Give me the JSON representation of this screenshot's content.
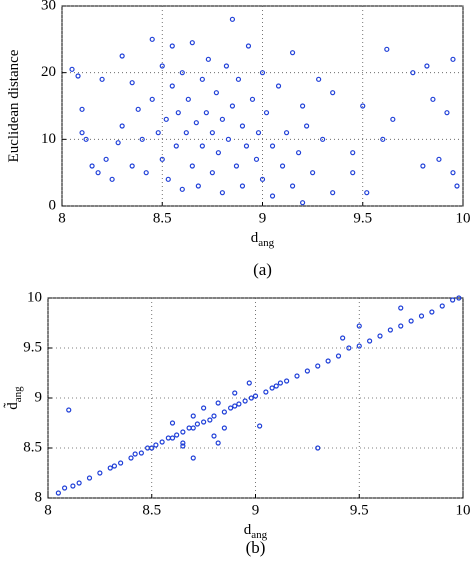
{
  "chart_data": [
    {
      "type": "scatter",
      "caption": "(a)",
      "xlabel": [
        "d",
        "ang"
      ],
      "ylabel": [
        "Euclidean distance"
      ],
      "xlim": [
        8,
        10
      ],
      "xticks": [
        8,
        8.5,
        9,
        9.5,
        10
      ],
      "ylim": [
        0,
        30
      ],
      "yticks": [
        0,
        10,
        20,
        30
      ],
      "grid": true,
      "series": [
        {
          "color": "#1f3fd8",
          "x": [
            8.05,
            8.08,
            8.1,
            8.1,
            8.12,
            8.15,
            8.18,
            8.2,
            8.22,
            8.25,
            8.28,
            8.3,
            8.3,
            8.35,
            8.35,
            8.38,
            8.4,
            8.42,
            8.45,
            8.45,
            8.48,
            8.5,
            8.5,
            8.52,
            8.53,
            8.55,
            8.55,
            8.57,
            8.58,
            8.6,
            8.6,
            8.62,
            8.63,
            8.65,
            8.65,
            8.67,
            8.68,
            8.7,
            8.7,
            8.72,
            8.73,
            8.75,
            8.75,
            8.77,
            8.78,
            8.8,
            8.8,
            8.82,
            8.83,
            8.85,
            8.85,
            8.87,
            8.88,
            8.9,
            8.9,
            8.92,
            8.93,
            8.95,
            8.97,
            8.98,
            9.0,
            9.0,
            9.02,
            9.05,
            9.05,
            9.08,
            9.1,
            9.12,
            9.15,
            9.15,
            9.18,
            9.2,
            9.2,
            9.22,
            9.25,
            9.28,
            9.3,
            9.35,
            9.35,
            9.45,
            9.45,
            9.5,
            9.52,
            9.6,
            9.62,
            9.65,
            9.75,
            9.8,
            9.82,
            9.85,
            9.88,
            9.92,
            9.95,
            9.95,
            9.97
          ],
          "values": [
            20.5,
            19.5,
            14.5,
            11,
            10,
            6,
            5,
            19,
            7,
            4,
            9.5,
            12,
            22.5,
            18.5,
            6,
            14.5,
            10,
            5,
            25,
            16,
            11,
            21,
            7,
            13,
            4,
            24,
            18,
            9,
            14,
            2.5,
            20,
            11,
            16,
            6,
            24.5,
            12.5,
            3,
            19,
            9,
            14,
            22,
            5,
            11,
            17,
            8,
            13,
            2,
            21,
            10,
            15,
            28,
            6,
            19,
            12,
            3,
            9,
            24,
            16,
            7,
            11,
            20,
            4,
            14,
            9,
            1.5,
            18,
            6,
            11,
            23,
            3,
            8,
            15,
            0.5,
            12,
            5,
            19,
            10,
            2,
            17,
            5,
            8,
            15,
            2,
            10,
            23.5,
            13,
            20,
            6,
            21,
            16,
            7,
            14,
            22,
            5,
            3
          ]
        }
      ]
    },
    {
      "type": "scatter",
      "caption": "(b)",
      "xlabel": [
        "d",
        "ang"
      ],
      "ylabel": [
        "d̃",
        "ang"
      ],
      "xlim": [
        8,
        10
      ],
      "xticks": [
        8,
        8.5,
        9,
        9.5,
        10
      ],
      "ylim": [
        8,
        10
      ],
      "yticks": [
        8,
        8.5,
        9,
        9.5,
        10
      ],
      "grid": true,
      "series": [
        {
          "color": "#1f3fd8",
          "x": [
            8.05,
            8.08,
            8.1,
            8.12,
            8.15,
            8.2,
            8.25,
            8.3,
            8.32,
            8.35,
            8.4,
            8.42,
            8.45,
            8.48,
            8.5,
            8.52,
            8.55,
            8.58,
            8.6,
            8.6,
            8.62,
            8.65,
            8.65,
            8.68,
            8.7,
            8.7,
            8.72,
            8.75,
            8.75,
            8.78,
            8.8,
            8.8,
            8.82,
            8.85,
            8.85,
            8.88,
            8.9,
            8.9,
            8.92,
            8.95,
            8.97,
            8.98,
            9.0,
            9.02,
            9.05,
            9.08,
            9.1,
            9.12,
            9.15,
            9.2,
            9.25,
            9.3,
            9.3,
            9.35,
            9.4,
            9.42,
            9.45,
            9.5,
            9.5,
            9.55,
            9.6,
            9.65,
            9.7,
            9.7,
            9.75,
            9.8,
            9.85,
            9.9,
            9.95,
            9.98,
            8.82,
            8.7,
            8.65
          ],
          "values": [
            8.05,
            8.1,
            8.88,
            8.12,
            8.15,
            8.2,
            8.25,
            8.3,
            8.32,
            8.35,
            8.4,
            8.44,
            8.45,
            8.5,
            8.5,
            8.53,
            8.56,
            8.6,
            8.6,
            8.75,
            8.63,
            8.66,
            8.52,
            8.7,
            8.7,
            8.82,
            8.74,
            8.76,
            8.9,
            8.78,
            8.82,
            8.62,
            8.95,
            8.86,
            8.7,
            8.9,
            8.92,
            9.05,
            8.94,
            8.97,
            9.15,
            9.0,
            9.02,
            8.72,
            9.06,
            9.1,
            9.12,
            9.15,
            9.17,
            9.22,
            9.27,
            8.5,
            9.32,
            9.37,
            9.42,
            9.6,
            9.5,
            9.52,
            9.72,
            9.57,
            9.62,
            9.68,
            9.72,
            9.9,
            9.77,
            9.82,
            9.86,
            9.92,
            9.98,
            10.0,
            8.55,
            8.4,
            8.55
          ]
        }
      ]
    }
  ]
}
